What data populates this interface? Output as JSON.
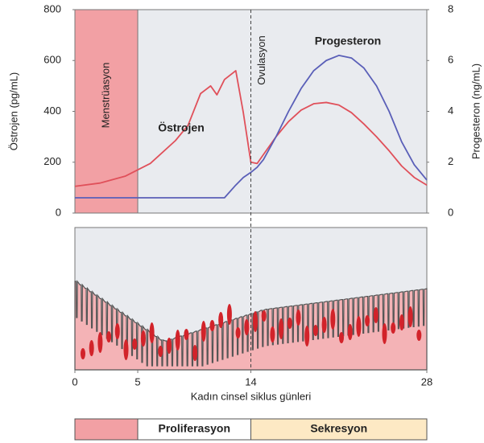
{
  "chart_data": {
    "type": "line",
    "x_label": "Kadın cinsel siklus günleri",
    "y_label": "Östrojen (pg/mL)",
    "y2_label": "Progesteron (ng/mL)",
    "x": [
      0,
      2,
      4,
      6,
      8,
      9,
      10,
      10.8,
      11.3,
      11.9,
      12.8,
      13.4,
      14,
      14.5,
      15,
      16,
      17,
      18,
      19,
      20,
      21,
      22,
      23,
      24,
      25,
      26,
      27,
      28
    ],
    "series": [
      {
        "name": "Östrojen",
        "color": "#e0505a",
        "axis": "y",
        "values": [
          105,
          118,
          145,
          195,
          285,
          345,
          470,
          500,
          465,
          525,
          560,
          395,
          200,
          195,
          230,
          300,
          360,
          405,
          430,
          435,
          425,
          395,
          350,
          300,
          245,
          185,
          140,
          110
        ]
      },
      {
        "name": "Progesteron",
        "color": "#5a5fb8",
        "axis": "y2",
        "values": [
          0.6,
          0.6,
          0.6,
          0.6,
          0.6,
          0.6,
          0.6,
          0.6,
          0.6,
          0.6,
          1.1,
          1.4,
          1.6,
          1.8,
          2.1,
          3.0,
          4.0,
          4.9,
          5.6,
          6.0,
          6.2,
          6.1,
          5.7,
          5.0,
          4.0,
          2.8,
          1.9,
          1.3
        ]
      }
    ],
    "xlim": [
      0,
      28
    ],
    "xticks": [
      0,
      5,
      14,
      28
    ],
    "ylim": [
      0,
      800
    ],
    "yticks": [
      0,
      200,
      400,
      600,
      800
    ],
    "y2lim": [
      0,
      8
    ],
    "y2ticks": [
      0,
      2,
      4,
      6,
      8
    ],
    "menstruation": {
      "label": "Menstrüasyon",
      "start": 0,
      "end": 5,
      "color": "#f2a0a4"
    },
    "ovulation": {
      "label": "Ovulasyon",
      "day": 14
    },
    "phases": [
      {
        "label": "Proliferasyon",
        "start": 5,
        "end": 14,
        "color": "#ffffff"
      },
      {
        "label": "Sekresyon",
        "start": 14,
        "end": 28,
        "color": "#fde9c4"
      }
    ]
  }
}
